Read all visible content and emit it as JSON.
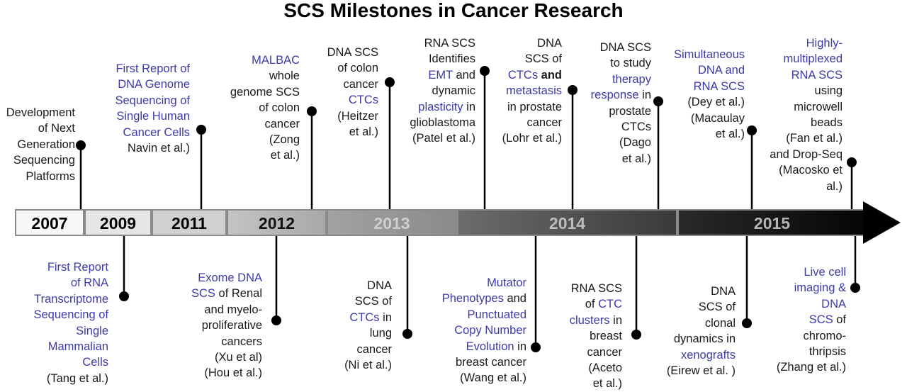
{
  "title": "SCS Milestones in Cancer Research",
  "colors": {
    "highlight": "#3d3aa6",
    "text": "#1a1a1a",
    "dot": "#000000"
  },
  "segments": [
    {
      "label": "2007",
      "fill": "#f7f7f7",
      "text_color": "#000000"
    },
    {
      "label": "2009",
      "fill": "#e6e6e6",
      "text_color": "#000000"
    },
    {
      "label": "2011",
      "fill": "#d0d0d0",
      "text_color": "#000000"
    },
    {
      "label": "2012",
      "fill": "#b3b3b3",
      "text_color": "#111111"
    },
    {
      "label": "2013",
      "fill": "#9b9b9b",
      "text_color": "#cfcfcf"
    },
    {
      "label": "2014",
      "fill": "#555555",
      "text_color": "#bdbdbd"
    },
    {
      "label": "2015",
      "fill": "#1e1e1e",
      "text_color": "#b5b5b5"
    }
  ],
  "milestones": [
    {
      "id": "next-gen-sequencing",
      "lines": [
        [
          {
            "t": "Development"
          }
        ],
        [
          {
            "t": "of Next"
          }
        ],
        [
          {
            "t": "Generation"
          }
        ],
        [
          {
            "t": "Sequencing"
          }
        ],
        [
          {
            "t": "Platforms"
          }
        ]
      ]
    },
    {
      "id": "dna-genome-single-cells",
      "lines": [
        [
          {
            "t": "First Report of",
            "h": true
          }
        ],
        [
          {
            "t": "DNA Genome",
            "h": true
          }
        ],
        [
          {
            "t": "Sequencing of",
            "h": true
          }
        ],
        [
          {
            "t": "Single Human",
            "h": true
          }
        ],
        [
          {
            "t": "Cancer Cells",
            "h": true
          }
        ],
        [
          {
            "t": "Navin et al.)"
          }
        ]
      ]
    },
    {
      "id": "malbac",
      "lines": [
        [
          {
            "t": "MALBAC",
            "h": true
          }
        ],
        [
          {
            "t": "whole"
          }
        ],
        [
          {
            "t": "genome SCS"
          }
        ],
        [
          {
            "t": "of colon"
          }
        ],
        [
          {
            "t": "cancer"
          }
        ],
        [
          {
            "t": "(Zong"
          }
        ],
        [
          {
            "t": "et al.)"
          }
        ]
      ]
    },
    {
      "id": "colon-ctcs",
      "lines": [
        [
          {
            "t": "DNA SCS"
          }
        ],
        [
          {
            "t": "of colon"
          }
        ],
        [
          {
            "t": "cancer"
          }
        ],
        [
          {
            "t": "CTCs",
            "h": true
          }
        ],
        [
          {
            "t": "(Heitzer"
          }
        ],
        [
          {
            "t": "et al.)"
          }
        ]
      ]
    },
    {
      "id": "glioblastoma",
      "lines": [
        [
          {
            "t": "RNA SCS"
          }
        ],
        [
          {
            "t": "Identifies"
          }
        ],
        [
          {
            "t": "EMT",
            "h": true
          },
          {
            "t": " and"
          }
        ],
        [
          {
            "t": "dynamic"
          }
        ],
        [
          {
            "t": "plasticity",
            "h": true
          },
          {
            "t": " in"
          }
        ],
        [
          {
            "t": "glioblastoma"
          }
        ],
        [
          {
            "t": "(Patel et al.)"
          }
        ]
      ]
    },
    {
      "id": "prostate-metastasis",
      "lines": [
        [
          {
            "t": "DNA"
          }
        ],
        [
          {
            "t": "SCS of"
          }
        ],
        [
          {
            "t": "CTCs",
            "h": true
          },
          {
            "t": " and",
            "b": true
          }
        ],
        [
          {
            "t": "metastasis",
            "h": true
          }
        ],
        [
          {
            "t": "in prostate"
          }
        ],
        [
          {
            "t": "cancer"
          }
        ],
        [
          {
            "t": "(Lohr et al.)"
          }
        ]
      ]
    },
    {
      "id": "therapy-response",
      "lines": [
        [
          {
            "t": "DNA SCS"
          }
        ],
        [
          {
            "t": "to study"
          }
        ],
        [
          {
            "t": "therapy",
            "h": true
          }
        ],
        [
          {
            "t": "response",
            "h": true
          },
          {
            "t": " in"
          }
        ],
        [
          {
            "t": "prostate"
          }
        ],
        [
          {
            "t": "CTCs"
          }
        ],
        [
          {
            "t": "(Dago"
          }
        ],
        [
          {
            "t": "et al.)"
          }
        ]
      ]
    },
    {
      "id": "simultaneous-dna-rna",
      "lines": [
        [
          {
            "t": "Simultaneous",
            "h": true
          }
        ],
        [
          {
            "t": "DNA and",
            "h": true
          }
        ],
        [
          {
            "t": "RNA SCS",
            "h": true
          }
        ],
        [
          {
            "t": "(Dey et al.)"
          }
        ],
        [
          {
            "t": "(Macaulay"
          }
        ],
        [
          {
            "t": "et al.)"
          }
        ]
      ]
    },
    {
      "id": "multiplexed-rna",
      "lines": [
        [
          {
            "t": "Highly-",
            "h": true
          }
        ],
        [
          {
            "t": "multiplexed",
            "h": true
          }
        ],
        [
          {
            "t": "RNA SCS",
            "h": true
          }
        ],
        [
          {
            "t": "using"
          }
        ],
        [
          {
            "t": "microwell"
          }
        ],
        [
          {
            "t": "beads"
          }
        ],
        [
          {
            "t": "(Fan et al.)"
          }
        ],
        [
          {
            "t": "and Drop-Seq"
          }
        ],
        [
          {
            "t": "(Macosko et"
          }
        ],
        [
          {
            "t": "al.)"
          }
        ]
      ]
    },
    {
      "id": "rna-transcriptome",
      "lines": [
        [
          {
            "t": "First Report",
            "h": true
          }
        ],
        [
          {
            "t": "of RNA",
            "h": true
          }
        ],
        [
          {
            "t": "Transcriptome",
            "h": true
          }
        ],
        [
          {
            "t": "Sequencing of",
            "h": true
          }
        ],
        [
          {
            "t": "Single",
            "h": true
          }
        ],
        [
          {
            "t": "Mammalian",
            "h": true
          }
        ],
        [
          {
            "t": "Cells",
            "h": true
          }
        ],
        [
          {
            "t": "(Tang et al.)"
          }
        ]
      ]
    },
    {
      "id": "exome-renal",
      "lines": [
        [
          {
            "t": "Exome DNA",
            "h": true
          }
        ],
        [
          {
            "t": "SCS",
            "h": true
          },
          {
            "t": " of Renal"
          }
        ],
        [
          {
            "t": "and myelo-"
          }
        ],
        [
          {
            "t": "proliferative"
          }
        ],
        [
          {
            "t": "cancers"
          }
        ],
        [
          {
            "t": "(Xu et al)"
          }
        ],
        [
          {
            "t": "(Hou et al.)"
          }
        ]
      ]
    },
    {
      "id": "lung-ctcs",
      "lines": [
        [
          {
            "t": "DNA"
          }
        ],
        [
          {
            "t": "SCS of"
          }
        ],
        [
          {
            "t": "CTCs",
            "h": true
          },
          {
            "t": " in"
          }
        ],
        [
          {
            "t": "lung"
          }
        ],
        [
          {
            "t": "cancer"
          }
        ],
        [
          {
            "t": "(Ni et al.)"
          }
        ]
      ]
    },
    {
      "id": "mutator-phenotypes",
      "lines": [
        [
          {
            "t": "Mutator",
            "h": true
          }
        ],
        [
          {
            "t": "Phenotypes",
            "h": true
          },
          {
            "t": " and"
          }
        ],
        [
          {
            "t": "Punctuated",
            "h": true
          }
        ],
        [
          {
            "t": "Copy Number",
            "h": true
          }
        ],
        [
          {
            "t": "Evolution",
            "h": true
          },
          {
            "t": " in"
          }
        ],
        [
          {
            "t": "breast cancer"
          }
        ],
        [
          {
            "t": "(Wang et al.)"
          }
        ]
      ]
    },
    {
      "id": "ctc-clusters",
      "lines": [
        [
          {
            "t": "RNA SCS"
          }
        ],
        [
          {
            "t": "of "
          },
          {
            "t": "CTC",
            "h": true
          }
        ],
        [
          {
            "t": "clusters",
            "h": true
          },
          {
            "t": " in"
          }
        ],
        [
          {
            "t": "breast"
          }
        ],
        [
          {
            "t": "cancer"
          }
        ],
        [
          {
            "t": "(Aceto"
          }
        ],
        [
          {
            "t": "et al.)"
          }
        ]
      ]
    },
    {
      "id": "xenografts",
      "lines": [
        [
          {
            "t": "DNA"
          }
        ],
        [
          {
            "t": "SCS of"
          }
        ],
        [
          {
            "t": "clonal"
          }
        ],
        [
          {
            "t": "dynamics in"
          }
        ],
        [
          {
            "t": "xenografts",
            "h": true
          }
        ],
        [
          {
            "t": "(Eirew et al. )"
          }
        ]
      ]
    },
    {
      "id": "chromothripsis",
      "lines": [
        [
          {
            "t": "Live cell",
            "h": true
          }
        ],
        [
          {
            "t": "imaging &",
            "h": true
          }
        ],
        [
          {
            "t": "DNA",
            "h": true
          }
        ],
        [
          {
            "t": "SCS",
            "h": true
          },
          {
            "t": " of"
          }
        ],
        [
          {
            "t": "chromo-"
          }
        ],
        [
          {
            "t": "thripsis"
          }
        ],
        [
          {
            "t": "(Zhang et al.)"
          }
        ]
      ]
    }
  ]
}
